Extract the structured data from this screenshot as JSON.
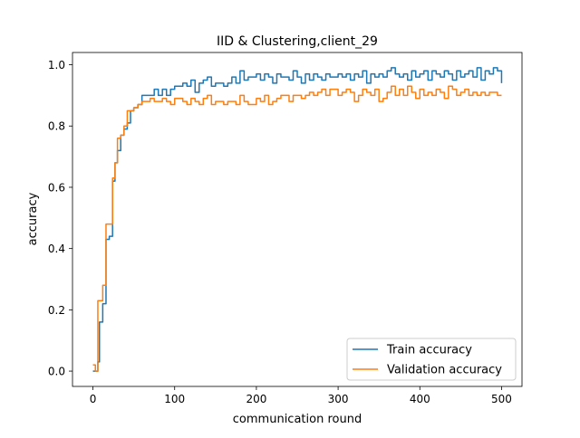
{
  "chart_data": {
    "type": "line",
    "title": "IID & Clustering,client_29",
    "xlabel": "communication round",
    "ylabel": "accuracy",
    "xlim": [
      -25,
      525
    ],
    "ylim": [
      -0.05,
      1.04
    ],
    "xticks": [
      0,
      100,
      200,
      300,
      400,
      500
    ],
    "yticks": [
      0.0,
      0.2,
      0.4,
      0.6,
      0.8,
      1.0
    ],
    "grid": false,
    "legend_position": "lower right",
    "series": [
      {
        "name": "Train accuracy",
        "color": "#1f77b4",
        "x": [
          0,
          3,
          6,
          8,
          12,
          16,
          20,
          24,
          27,
          30,
          34,
          38,
          42,
          46,
          50,
          55,
          60,
          70,
          75,
          80,
          85,
          90,
          95,
          100,
          110,
          115,
          120,
          125,
          130,
          135,
          140,
          145,
          150,
          160,
          165,
          170,
          175,
          180,
          185,
          190,
          200,
          205,
          210,
          215,
          220,
          225,
          230,
          240,
          245,
          250,
          255,
          260,
          265,
          270,
          275,
          280,
          285,
          290,
          300,
          305,
          310,
          315,
          320,
          325,
          330,
          335,
          340,
          345,
          350,
          355,
          360,
          365,
          370,
          375,
          380,
          385,
          390,
          395,
          400,
          405,
          410,
          415,
          420,
          425,
          430,
          435,
          440,
          445,
          450,
          455,
          460,
          465,
          470,
          475,
          480,
          485,
          490,
          495,
          500
        ],
        "y": [
          0.0,
          0.0,
          0.03,
          0.16,
          0.22,
          0.43,
          0.44,
          0.62,
          0.68,
          0.72,
          0.77,
          0.79,
          0.81,
          0.85,
          0.86,
          0.87,
          0.9,
          0.9,
          0.92,
          0.9,
          0.92,
          0.9,
          0.92,
          0.93,
          0.94,
          0.93,
          0.95,
          0.91,
          0.94,
          0.95,
          0.96,
          0.93,
          0.94,
          0.93,
          0.94,
          0.96,
          0.94,
          0.98,
          0.95,
          0.96,
          0.97,
          0.95,
          0.97,
          0.96,
          0.94,
          0.97,
          0.96,
          0.95,
          0.98,
          0.96,
          0.94,
          0.97,
          0.95,
          0.97,
          0.96,
          0.95,
          0.97,
          0.96,
          0.97,
          0.96,
          0.97,
          0.95,
          0.97,
          0.96,
          0.98,
          0.94,
          0.97,
          0.96,
          0.97,
          0.96,
          0.98,
          0.99,
          0.97,
          0.96,
          0.97,
          0.95,
          0.98,
          0.96,
          0.97,
          0.98,
          0.95,
          0.98,
          0.97,
          0.96,
          0.98,
          0.97,
          0.95,
          0.98,
          0.96,
          0.97,
          0.98,
          0.96,
          0.99,
          0.95,
          0.98,
          0.97,
          0.99,
          0.98,
          0.94
        ]
      },
      {
        "name": "Validation accuracy",
        "color": "#ff7f0e",
        "x": [
          0,
          3,
          6,
          8,
          12,
          16,
          20,
          24,
          27,
          30,
          34,
          38,
          42,
          46,
          50,
          55,
          60,
          70,
          75,
          80,
          85,
          90,
          95,
          100,
          110,
          115,
          120,
          125,
          130,
          135,
          140,
          145,
          150,
          160,
          165,
          170,
          175,
          180,
          185,
          190,
          200,
          205,
          210,
          215,
          220,
          225,
          230,
          240,
          245,
          250,
          255,
          260,
          265,
          270,
          275,
          280,
          285,
          290,
          300,
          305,
          310,
          315,
          320,
          325,
          330,
          335,
          340,
          345,
          350,
          355,
          360,
          365,
          370,
          375,
          380,
          385,
          390,
          395,
          400,
          405,
          410,
          415,
          420,
          425,
          430,
          435,
          440,
          445,
          450,
          455,
          460,
          465,
          470,
          475,
          480,
          485,
          490,
          495,
          500
        ],
        "y": [
          0.02,
          0.0,
          0.23,
          0.23,
          0.28,
          0.48,
          0.48,
          0.63,
          0.68,
          0.76,
          0.77,
          0.8,
          0.85,
          0.85,
          0.86,
          0.87,
          0.88,
          0.89,
          0.88,
          0.88,
          0.89,
          0.88,
          0.87,
          0.89,
          0.88,
          0.87,
          0.89,
          0.88,
          0.87,
          0.89,
          0.9,
          0.87,
          0.88,
          0.87,
          0.88,
          0.88,
          0.87,
          0.9,
          0.88,
          0.87,
          0.89,
          0.88,
          0.9,
          0.87,
          0.88,
          0.89,
          0.9,
          0.88,
          0.9,
          0.9,
          0.89,
          0.9,
          0.91,
          0.9,
          0.91,
          0.92,
          0.9,
          0.92,
          0.9,
          0.91,
          0.92,
          0.91,
          0.88,
          0.9,
          0.92,
          0.91,
          0.9,
          0.92,
          0.88,
          0.89,
          0.91,
          0.93,
          0.9,
          0.92,
          0.9,
          0.93,
          0.91,
          0.89,
          0.92,
          0.9,
          0.91,
          0.9,
          0.92,
          0.91,
          0.89,
          0.93,
          0.92,
          0.9,
          0.91,
          0.92,
          0.9,
          0.91,
          0.9,
          0.91,
          0.9,
          0.91,
          0.91,
          0.9,
          0.9
        ]
      }
    ]
  }
}
